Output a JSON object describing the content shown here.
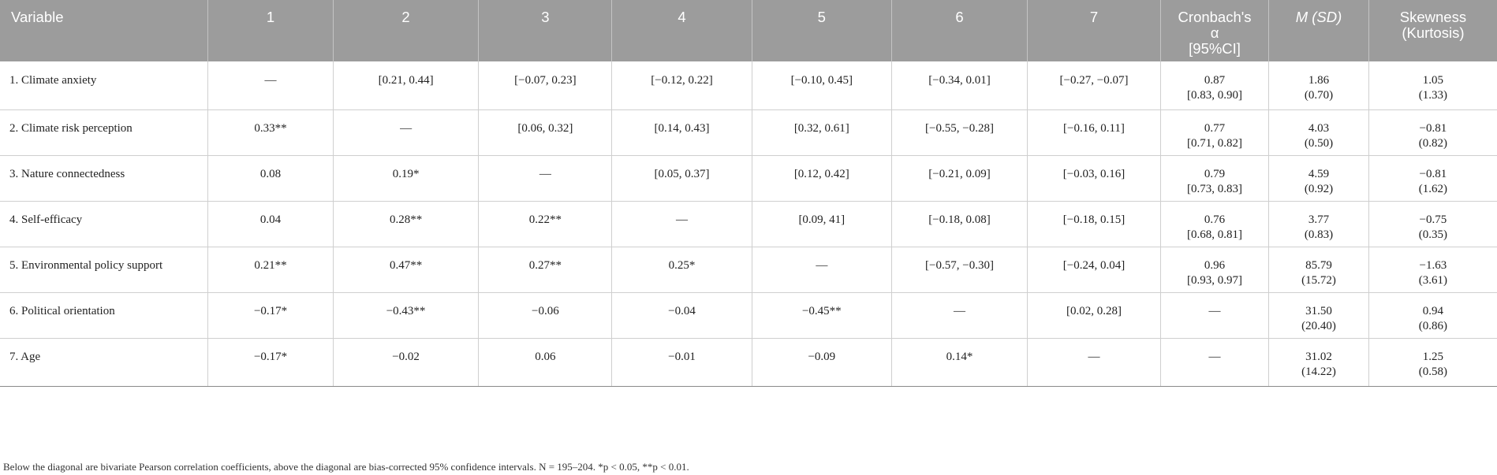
{
  "table": {
    "headers": [
      "Variable",
      "1",
      "2",
      "3",
      "4",
      "5",
      "6",
      "7",
      "Cronbach's α [95%CI]",
      "M (SD)",
      "Skewness (Kurtosis)"
    ],
    "header_lines": {
      "alpha_line1": "Cronbach's",
      "alpha_line2": "α",
      "alpha_line3": "[95%CI]",
      "msd": "M (SD)",
      "skew_line1": "Skewness",
      "skew_line2": "(Kurtosis)"
    },
    "rows": [
      {
        "variable": "1. Climate anxiety",
        "cells": [
          "—",
          "[0.21, 0.44]",
          "[−0.07, 0.23]",
          "[−0.12, 0.22]",
          "[−0.10, 0.45]",
          "[−0.34, 0.01]",
          "[−0.27, −0.07]"
        ],
        "alpha": [
          "0.87",
          "[0.83, 0.90]"
        ],
        "msd": [
          "1.86",
          "(0.70)"
        ],
        "skew": [
          "1.05",
          "(1.33)"
        ]
      },
      {
        "variable": "2. Climate risk perception",
        "cells": [
          "0.33**",
          "—",
          "[0.06, 0.32]",
          "[0.14, 0.43]",
          "[0.32, 0.61]",
          "[−0.55, −0.28]",
          "[−0.16, 0.11]"
        ],
        "alpha": [
          "0.77",
          "[0.71, 0.82]"
        ],
        "msd": [
          "4.03",
          "(0.50)"
        ],
        "skew": [
          "−0.81",
          "(0.82)"
        ]
      },
      {
        "variable": "3. Nature connectedness",
        "cells": [
          "0.08",
          "0.19*",
          "—",
          "[0.05, 0.37]",
          "[0.12, 0.42]",
          "[−0.21, 0.09]",
          "[−0.03, 0.16]"
        ],
        "alpha": [
          "0.79",
          "[0.73, 0.83]"
        ],
        "msd": [
          "4.59",
          "(0.92)"
        ],
        "skew": [
          "−0.81",
          "(1.62)"
        ]
      },
      {
        "variable": "4. Self-efficacy",
        "cells": [
          "0.04",
          "0.28**",
          "0.22**",
          "—",
          "[0.09, 41]",
          "[−0.18, 0.08]",
          "[−0.18, 0.15]"
        ],
        "alpha": [
          "0.76",
          "[0.68, 0.81]"
        ],
        "msd": [
          "3.77",
          "(0.83)"
        ],
        "skew": [
          "−0.75",
          "(0.35)"
        ]
      },
      {
        "variable": "5. Environmental policy support",
        "cells": [
          "0.21**",
          "0.47**",
          "0.27**",
          "0.25*",
          "—",
          "[−0.57, −0.30]",
          "[−0.24, 0.04]"
        ],
        "alpha": [
          "0.96",
          "[0.93, 0.97]"
        ],
        "msd": [
          "85.79",
          "(15.72)"
        ],
        "skew": [
          "−1.63",
          "(3.61)"
        ]
      },
      {
        "variable": "6. Political orientation",
        "cells": [
          "−0.17*",
          "−0.43**",
          "−0.06",
          "−0.04",
          "−0.45**",
          "—",
          "[0.02, 0.28]"
        ],
        "alpha": [
          "—",
          ""
        ],
        "msd": [
          "31.50",
          "(20.40)"
        ],
        "skew": [
          "0.94",
          "(0.86)"
        ]
      },
      {
        "variable": "7. Age",
        "cells": [
          "−0.17*",
          "−0.02",
          "0.06",
          "−0.01",
          "−0.09",
          "0.14*",
          "—"
        ],
        "alpha": [
          "—",
          ""
        ],
        "msd": [
          "31.02",
          "(14.22)"
        ],
        "skew": [
          "1.25",
          "(0.58)"
        ]
      }
    ]
  },
  "footnote": "Below the diagonal are bivariate Pearson correlation coefficients, above the diagonal are bias-corrected 95% confidence intervals. N = 195–204. *p < 0.05, **p < 0.01."
}
